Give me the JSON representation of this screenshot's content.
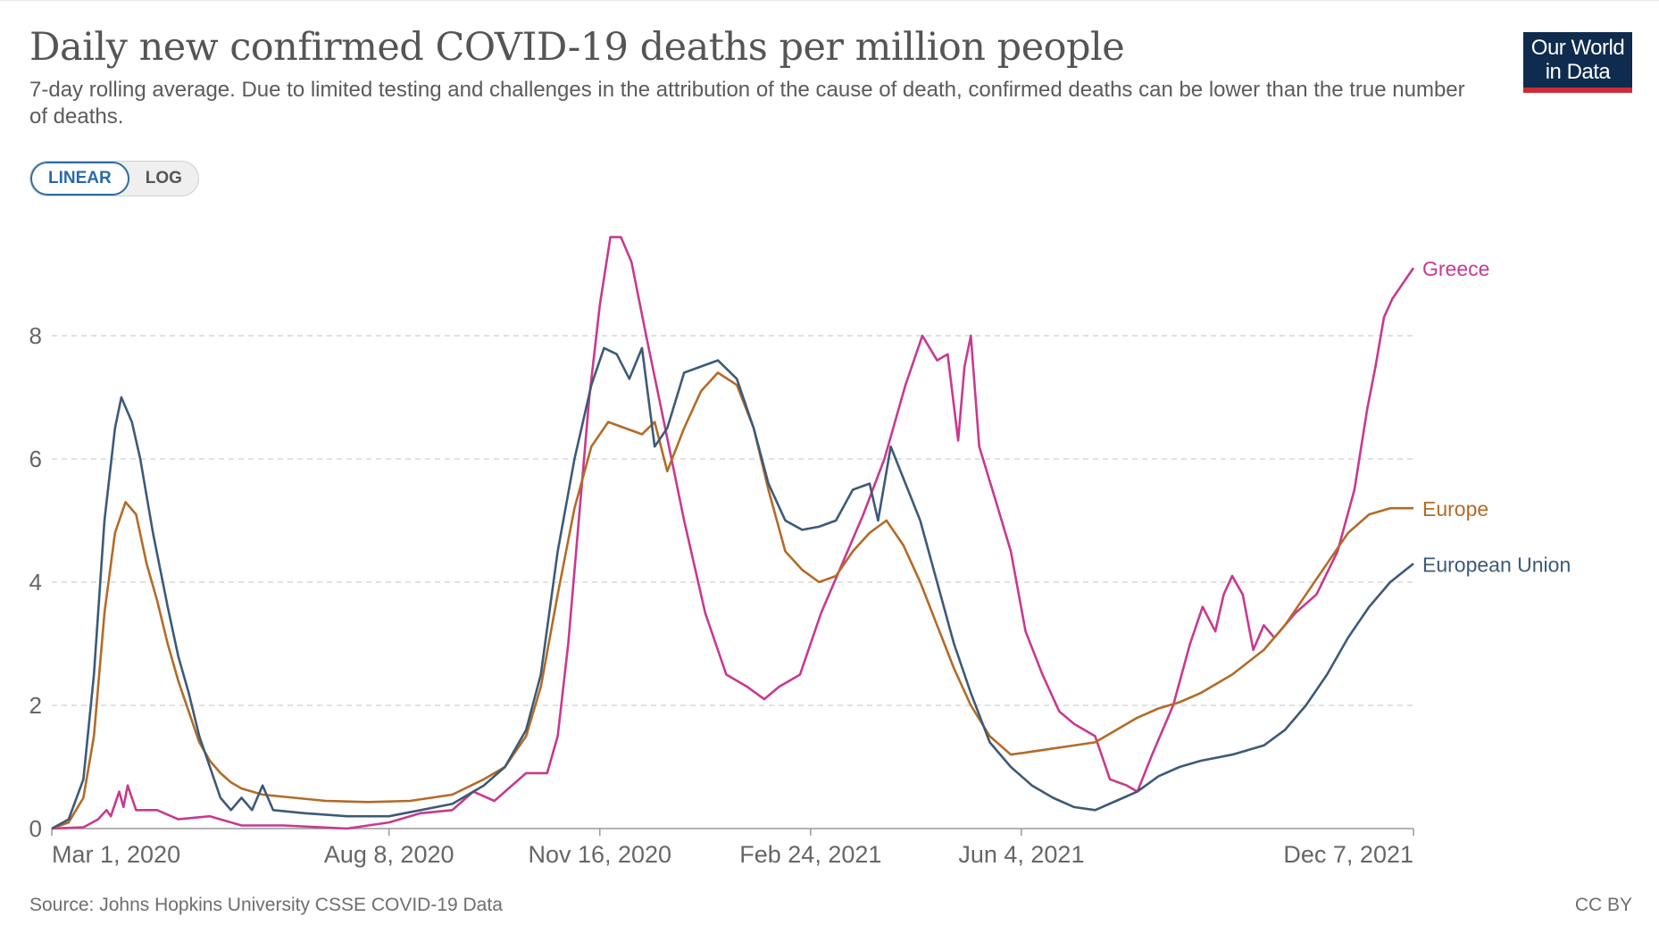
{
  "header": {
    "title": "Daily new confirmed COVID-19 deaths per million people",
    "subtitle": "7-day rolling average. Due to limited testing and challenges in the attribution of the cause of death, confirmed deaths can be lower than the true number of deaths."
  },
  "logo": {
    "line1": "Our World",
    "line2": "in Data"
  },
  "scale_toggle": {
    "linear": "LINEAR",
    "log": "LOG",
    "selected": "LINEAR"
  },
  "footer": {
    "source": "Source: Johns Hopkins University CSSE COVID-19 Data",
    "license": "CC BY"
  },
  "colors": {
    "greece": "#c8398f",
    "europe": "#b36b27",
    "eu": "#3d5a78",
    "grid": "#d7d7d7",
    "axis": "#666666"
  },
  "chart_data": {
    "type": "line",
    "title": "Daily new confirmed COVID-19 deaths per million people",
    "xlabel": "",
    "ylabel": "",
    "x_unit": "days since Mar 1, 2020",
    "xlim": [
      0,
      646
    ],
    "ylim": [
      0,
      9.7
    ],
    "y_ticks": [
      0,
      2,
      4,
      6,
      8
    ],
    "x_ticks": [
      {
        "label": "Mar 1, 2020",
        "x": 0
      },
      {
        "label": "Aug 8, 2020",
        "x": 160
      },
      {
        "label": "Nov 16, 2020",
        "x": 260
      },
      {
        "label": "Feb 24, 2021",
        "x": 360
      },
      {
        "label": "Jun 4, 2021",
        "x": 460
      },
      {
        "label": "Dec 7, 2021",
        "x": 646
      }
    ],
    "grid": "horizontal dashed",
    "legend": "line-end labels, right",
    "series": [
      {
        "name": "Greece",
        "color_key": "greece",
        "points": [
          [
            0,
            0
          ],
          [
            15,
            0.02
          ],
          [
            22,
            0.15
          ],
          [
            26,
            0.3
          ],
          [
            28,
            0.2
          ],
          [
            32,
            0.6
          ],
          [
            34,
            0.35
          ],
          [
            36,
            0.7
          ],
          [
            40,
            0.3
          ],
          [
            50,
            0.3
          ],
          [
            60,
            0.15
          ],
          [
            75,
            0.2
          ],
          [
            90,
            0.05
          ],
          [
            110,
            0.05
          ],
          [
            140,
            0
          ],
          [
            160,
            0.1
          ],
          [
            175,
            0.25
          ],
          [
            190,
            0.3
          ],
          [
            200,
            0.6
          ],
          [
            210,
            0.45
          ],
          [
            225,
            0.9
          ],
          [
            235,
            0.9
          ],
          [
            240,
            1.5
          ],
          [
            245,
            3
          ],
          [
            250,
            5
          ],
          [
            255,
            7
          ],
          [
            260,
            8.5
          ],
          [
            265,
            9.6
          ],
          [
            270,
            9.6
          ],
          [
            275,
            9.2
          ],
          [
            282,
            8
          ],
          [
            288,
            7
          ],
          [
            300,
            5
          ],
          [
            310,
            3.5
          ],
          [
            320,
            2.5
          ],
          [
            330,
            2.3
          ],
          [
            338,
            2.1
          ],
          [
            345,
            2.3
          ],
          [
            355,
            2.5
          ],
          [
            365,
            3.5
          ],
          [
            375,
            4.3
          ],
          [
            385,
            5.1
          ],
          [
            395,
            6
          ],
          [
            405,
            7.2
          ],
          [
            413,
            8
          ],
          [
            420,
            7.6
          ],
          [
            425,
            7.7
          ],
          [
            430,
            6.3
          ],
          [
            433,
            7.5
          ],
          [
            436,
            8
          ],
          [
            440,
            6.2
          ],
          [
            448,
            5.3
          ],
          [
            455,
            4.5
          ],
          [
            462,
            3.2
          ],
          [
            470,
            2.5
          ],
          [
            478,
            1.9
          ],
          [
            485,
            1.7
          ],
          [
            495,
            1.5
          ],
          [
            502,
            0.8
          ],
          [
            510,
            0.7
          ],
          [
            515,
            0.6
          ],
          [
            522,
            1.2
          ],
          [
            532,
            2
          ],
          [
            540,
            3
          ],
          [
            546,
            3.6
          ],
          [
            552,
            3.2
          ],
          [
            556,
            3.8
          ],
          [
            560,
            4.1
          ],
          [
            565,
            3.8
          ],
          [
            570,
            2.9
          ],
          [
            575,
            3.3
          ],
          [
            580,
            3.1
          ],
          [
            590,
            3.5
          ],
          [
            600,
            3.8
          ],
          [
            610,
            4.5
          ],
          [
            618,
            5.5
          ],
          [
            624,
            6.8
          ],
          [
            628,
            7.5
          ],
          [
            632,
            8.3
          ],
          [
            636,
            8.6
          ],
          [
            640,
            8.8
          ],
          [
            646,
            9.1
          ]
        ]
      },
      {
        "name": "Europe",
        "color_key": "europe",
        "points": [
          [
            0,
            0
          ],
          [
            8,
            0.1
          ],
          [
            15,
            0.5
          ],
          [
            20,
            1.5
          ],
          [
            25,
            3.5
          ],
          [
            30,
            4.8
          ],
          [
            35,
            5.3
          ],
          [
            40,
            5.1
          ],
          [
            45,
            4.3
          ],
          [
            50,
            3.7
          ],
          [
            55,
            3
          ],
          [
            60,
            2.4
          ],
          [
            65,
            1.9
          ],
          [
            70,
            1.4
          ],
          [
            75,
            1.1
          ],
          [
            80,
            0.9
          ],
          [
            85,
            0.75
          ],
          [
            90,
            0.65
          ],
          [
            100,
            0.55
          ],
          [
            115,
            0.5
          ],
          [
            130,
            0.45
          ],
          [
            150,
            0.43
          ],
          [
            170,
            0.45
          ],
          [
            190,
            0.55
          ],
          [
            205,
            0.8
          ],
          [
            215,
            1
          ],
          [
            225,
            1.5
          ],
          [
            232,
            2.3
          ],
          [
            240,
            3.8
          ],
          [
            248,
            5.2
          ],
          [
            256,
            6.2
          ],
          [
            264,
            6.6
          ],
          [
            272,
            6.5
          ],
          [
            280,
            6.4
          ],
          [
            286,
            6.6
          ],
          [
            292,
            5.8
          ],
          [
            300,
            6.5
          ],
          [
            308,
            7.1
          ],
          [
            316,
            7.4
          ],
          [
            325,
            7.2
          ],
          [
            333,
            6.5
          ],
          [
            340,
            5.5
          ],
          [
            348,
            4.5
          ],
          [
            356,
            4.2
          ],
          [
            364,
            4
          ],
          [
            372,
            4.1
          ],
          [
            380,
            4.5
          ],
          [
            388,
            4.8
          ],
          [
            396,
            5
          ],
          [
            404,
            4.6
          ],
          [
            412,
            4
          ],
          [
            420,
            3.3
          ],
          [
            428,
            2.6
          ],
          [
            436,
            2
          ],
          [
            445,
            1.5
          ],
          [
            455,
            1.2
          ],
          [
            465,
            1.25
          ],
          [
            475,
            1.3
          ],
          [
            485,
            1.35
          ],
          [
            495,
            1.4
          ],
          [
            505,
            1.6
          ],
          [
            515,
            1.8
          ],
          [
            525,
            1.95
          ],
          [
            535,
            2.05
          ],
          [
            545,
            2.2
          ],
          [
            560,
            2.5
          ],
          [
            575,
            2.9
          ],
          [
            585,
            3.3
          ],
          [
            595,
            3.8
          ],
          [
            605,
            4.3
          ],
          [
            615,
            4.8
          ],
          [
            625,
            5.1
          ],
          [
            635,
            5.2
          ],
          [
            646,
            5.2
          ]
        ]
      },
      {
        "name": "European Union",
        "color_key": "eu",
        "points": [
          [
            0,
            0
          ],
          [
            8,
            0.15
          ],
          [
            15,
            0.8
          ],
          [
            20,
            2.5
          ],
          [
            25,
            5
          ],
          [
            30,
            6.5
          ],
          [
            33,
            7
          ],
          [
            38,
            6.6
          ],
          [
            42,
            6
          ],
          [
            48,
            4.8
          ],
          [
            55,
            3.6
          ],
          [
            60,
            2.8
          ],
          [
            65,
            2.2
          ],
          [
            70,
            1.5
          ],
          [
            75,
            1
          ],
          [
            80,
            0.5
          ],
          [
            85,
            0.3
          ],
          [
            90,
            0.5
          ],
          [
            95,
            0.3
          ],
          [
            100,
            0.7
          ],
          [
            105,
            0.3
          ],
          [
            120,
            0.25
          ],
          [
            140,
            0.2
          ],
          [
            160,
            0.2
          ],
          [
            175,
            0.3
          ],
          [
            190,
            0.4
          ],
          [
            205,
            0.7
          ],
          [
            215,
            1
          ],
          [
            225,
            1.6
          ],
          [
            232,
            2.5
          ],
          [
            240,
            4.5
          ],
          [
            248,
            6
          ],
          [
            256,
            7.2
          ],
          [
            262,
            7.8
          ],
          [
            268,
            7.7
          ],
          [
            274,
            7.3
          ],
          [
            280,
            7.8
          ],
          [
            286,
            6.2
          ],
          [
            292,
            6.5
          ],
          [
            300,
            7.4
          ],
          [
            308,
            7.5
          ],
          [
            316,
            7.6
          ],
          [
            325,
            7.3
          ],
          [
            333,
            6.5
          ],
          [
            340,
            5.6
          ],
          [
            348,
            5
          ],
          [
            356,
            4.85
          ],
          [
            364,
            4.9
          ],
          [
            372,
            5
          ],
          [
            380,
            5.5
          ],
          [
            388,
            5.6
          ],
          [
            392,
            5
          ],
          [
            398,
            6.2
          ],
          [
            405,
            5.6
          ],
          [
            412,
            5
          ],
          [
            420,
            4
          ],
          [
            428,
            3
          ],
          [
            436,
            2.2
          ],
          [
            445,
            1.4
          ],
          [
            455,
            1
          ],
          [
            465,
            0.7
          ],
          [
            475,
            0.5
          ],
          [
            485,
            0.35
          ],
          [
            495,
            0.3
          ],
          [
            505,
            0.45
          ],
          [
            515,
            0.6
          ],
          [
            525,
            0.85
          ],
          [
            535,
            1
          ],
          [
            545,
            1.1
          ],
          [
            560,
            1.2
          ],
          [
            575,
            1.35
          ],
          [
            585,
            1.6
          ],
          [
            595,
            2
          ],
          [
            605,
            2.5
          ],
          [
            615,
            3.1
          ],
          [
            625,
            3.6
          ],
          [
            635,
            4
          ],
          [
            646,
            4.3
          ]
        ]
      }
    ]
  }
}
